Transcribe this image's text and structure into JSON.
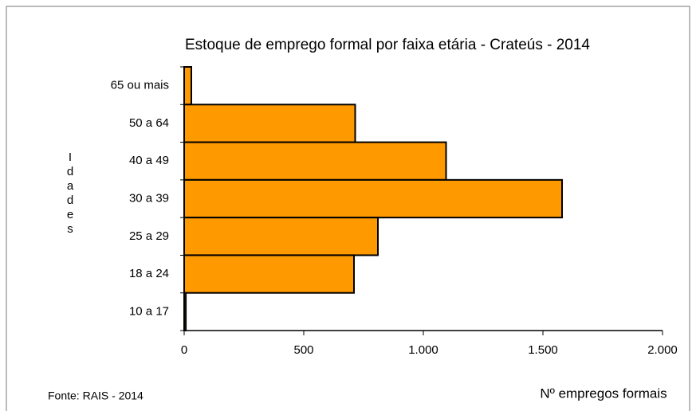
{
  "chart_data": {
    "type": "bar",
    "orientation": "horizontal",
    "title": "Estoque de emprego formal por faixa etária - Crateús - 2014",
    "y_label": "Idades",
    "x_label": "Nº empregos formais",
    "source": "Fonte: RAIS - 2014",
    "categories": [
      "65 ou mais",
      "50 a 64",
      "40 a 49",
      "30 a 39",
      "25 a 29",
      "18 a 24",
      "10 a 17"
    ],
    "values": [
      30,
      715,
      1095,
      1580,
      810,
      710,
      7
    ],
    "color": "#ff9900",
    "xlim": [
      0,
      2000
    ],
    "xticks": [
      0,
      500,
      {
        "value": 1000,
        "label": "1.000"
      },
      {
        "value": 1500,
        "label": "1.500"
      },
      {
        "value": 2000,
        "label": "2.000"
      }
    ],
    "grid": false
  }
}
